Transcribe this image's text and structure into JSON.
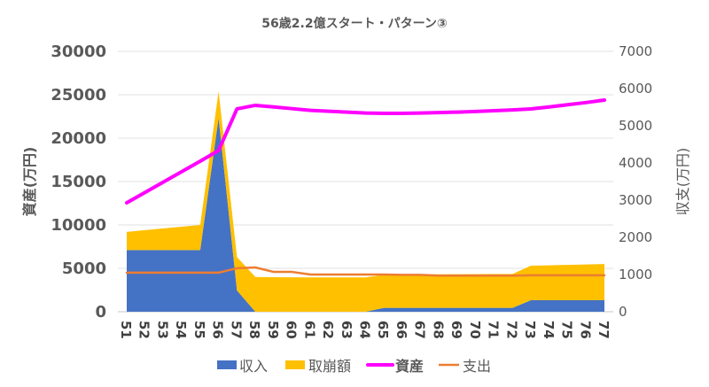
{
  "chart_data": {
    "type": "area",
    "title": "56歳2.2億スタート・パターン③",
    "xlabel": "",
    "ylabel": "資産(万円)",
    "y2label": "収支(万円)",
    "ylim": [
      0,
      30000
    ],
    "y2lim": [
      0,
      7000
    ],
    "yticks": [
      "0",
      "5000",
      "10000",
      "15000",
      "20000",
      "25000",
      "30000"
    ],
    "y2ticks": [
      "0",
      "1000",
      "2000",
      "3000",
      "4000",
      "5000",
      "6000",
      "7000"
    ],
    "grid": true,
    "legend_position": "bottom",
    "categories": [
      "51",
      "52",
      "53",
      "54",
      "55",
      "56",
      "57",
      "58",
      "59",
      "60",
      "61",
      "62",
      "63",
      "64",
      "65",
      "66",
      "67",
      "68",
      "69",
      "70",
      "71",
      "72",
      "73",
      "74",
      "75",
      "76",
      "77"
    ],
    "series": [
      {
        "name": "収入",
        "type": "stacked-area",
        "axis": "left",
        "color": "#4472C4",
        "values": [
          7100,
          7100,
          7100,
          7100,
          7100,
          22350,
          2450,
          0,
          0,
          0,
          0,
          0,
          0,
          0,
          450,
          450,
          450,
          450,
          450,
          450,
          450,
          450,
          1330,
          1330,
          1330,
          1330,
          1330
        ]
      },
      {
        "name": "取崩額",
        "type": "stacked-area",
        "axis": "left",
        "color": "#FFC000",
        "values": [
          2100,
          2300,
          2500,
          2700,
          2900,
          3050,
          3850,
          4000,
          3980,
          3970,
          3960,
          3950,
          3950,
          3950,
          3800,
          3820,
          3840,
          3860,
          3880,
          3890,
          3900,
          3900,
          3970,
          4020,
          4070,
          4120,
          4170
        ]
      },
      {
        "name": "資産",
        "type": "line",
        "axis": "left",
        "color": "#FF00FF",
        "bold": true,
        "values": [
          12550,
          13750,
          14950,
          16150,
          17350,
          18570,
          23370,
          23780,
          23600,
          23400,
          23200,
          23100,
          23000,
          22900,
          22860,
          22860,
          22900,
          22950,
          23000,
          23080,
          23160,
          23250,
          23370,
          23600,
          23850,
          24100,
          24390
        ]
      },
      {
        "name": "支出",
        "type": "line",
        "axis": "right",
        "color": "#ED7D31",
        "values": [
          1050,
          1050,
          1050,
          1050,
          1050,
          1050,
          1170,
          1190,
          1070,
          1070,
          1000,
          1000,
          1000,
          1000,
          1000,
          990,
          990,
          970,
          970,
          970,
          970,
          970,
          980,
          980,
          980,
          980,
          980
        ]
      }
    ]
  }
}
